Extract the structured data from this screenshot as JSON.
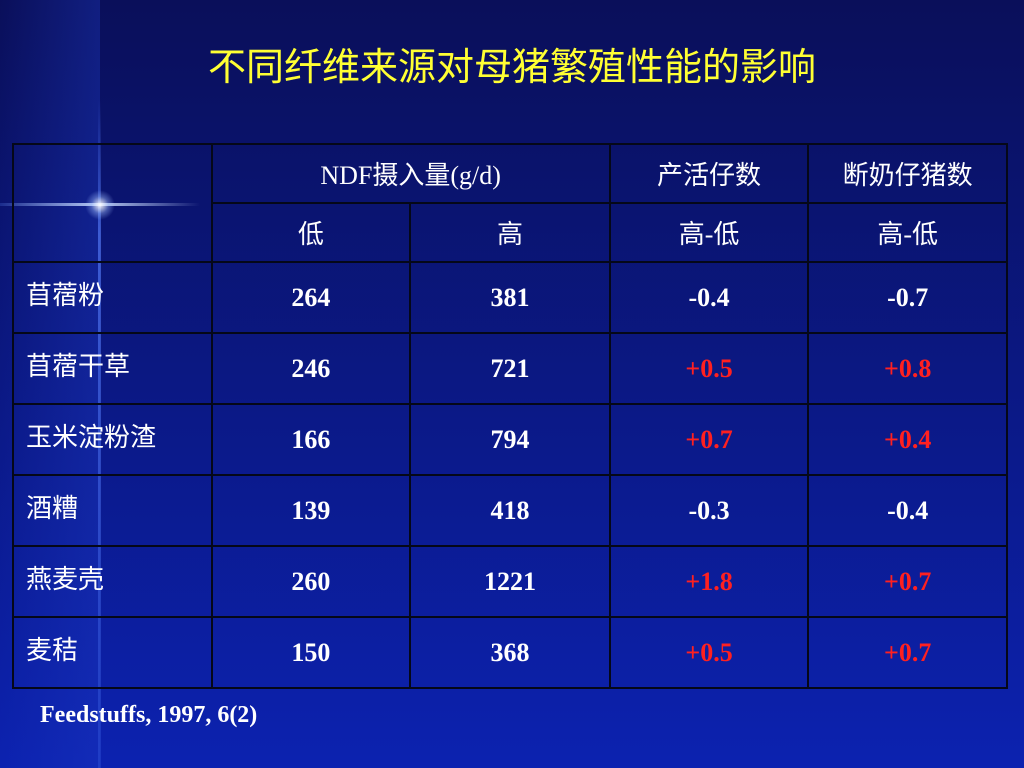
{
  "title": "不同纤维来源对母猪繁殖性能的影响",
  "table": {
    "header": [
      [
        "NDF摄入量(g/d)",
        "产活仔数",
        "断奶仔猪数"
      ],
      [
        "低",
        "高",
        "高-低",
        "高-低"
      ]
    ],
    "rows": [
      [
        "苜蓿粉",
        "264",
        "381",
        "-0.4",
        "-0.7"
      ],
      [
        "苜蓿干草",
        "246",
        "721",
        "+0.5",
        "+0.8"
      ],
      [
        "玉米淀粉渣",
        "166",
        "794",
        "+0.7",
        "+0.4"
      ],
      [
        "酒糟",
        "139",
        "418",
        "-0.3",
        "-0.4"
      ],
      [
        "燕麦壳",
        "260",
        "1221",
        "+1.8",
        "+0.7"
      ],
      [
        "麦秸",
        "150",
        "368",
        "+0.5",
        "+0.7"
      ]
    ],
    "positive_color": "#ff2020"
  },
  "footnote": "Feedstuffs, 1997, 6(2)"
}
